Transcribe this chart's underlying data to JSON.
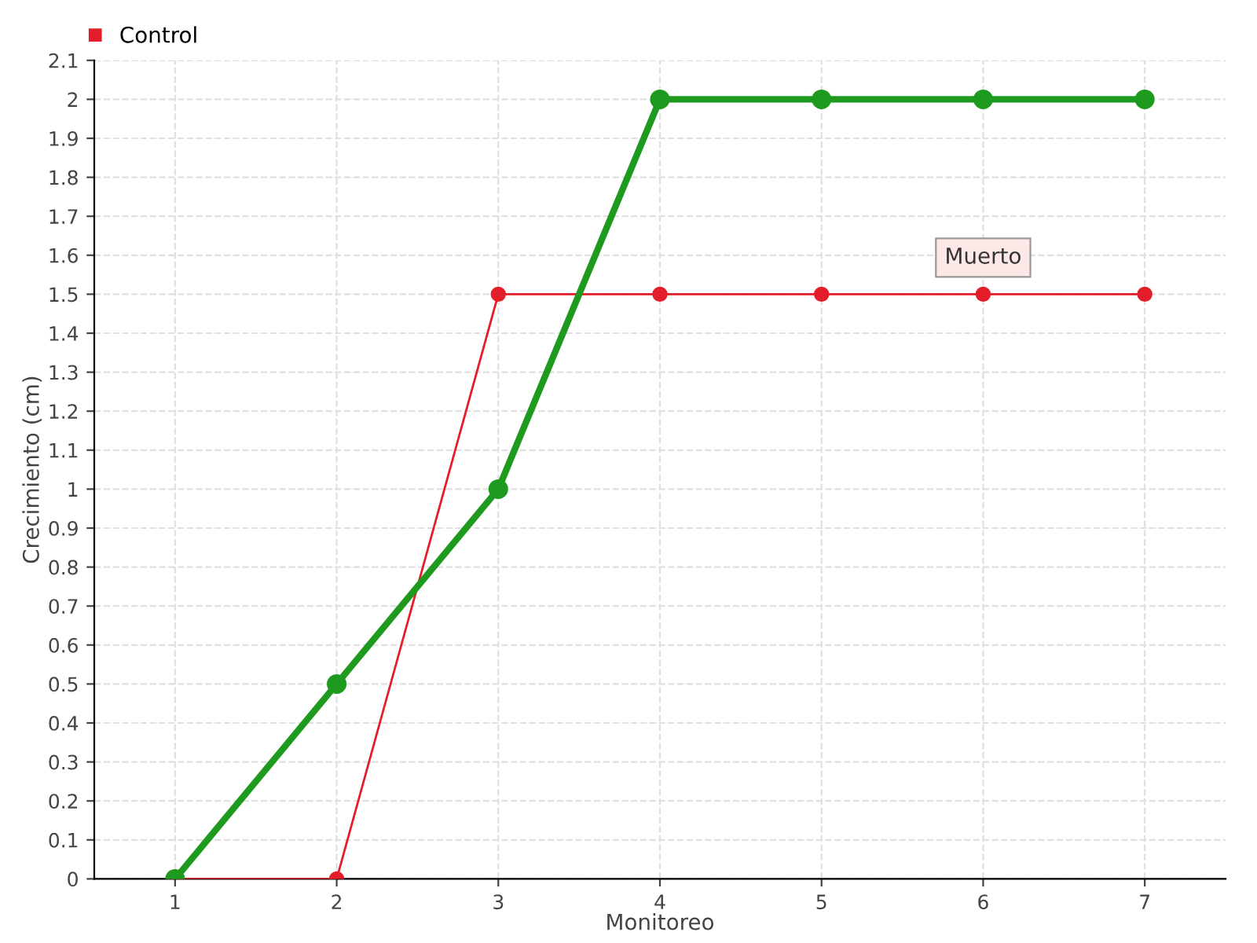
{
  "chart_data": {
    "type": "line",
    "xlabel": "Monitoreo",
    "ylabel": "Crecimiento (cm)",
    "x": [
      1,
      2,
      3,
      4,
      5,
      6,
      7
    ],
    "series": [
      {
        "color": "#1e9a1e",
        "values": [
          0,
          0.5,
          1,
          2,
          2,
          2,
          2
        ]
      },
      {
        "name": "Control",
        "color": "#e31e2a",
        "values": [
          0,
          0,
          1.5,
          1.5,
          1.5,
          1.5,
          1.5
        ]
      }
    ],
    "xlim": [
      0.5,
      7.5
    ],
    "xticks": [
      1,
      2,
      3,
      4,
      5,
      6,
      7
    ],
    "ylim": [
      0,
      2.1
    ],
    "yticks": [
      0,
      0.1,
      0.2,
      0.3,
      0.4,
      0.5,
      0.6,
      0.7,
      0.8,
      0.9,
      1,
      1.1,
      1.2,
      1.3,
      1.4,
      1.5,
      1.6,
      1.7,
      1.8,
      1.9,
      2,
      2.1
    ],
    "annotations": [
      {
        "text": "Muerto",
        "x": 6,
        "y": 1.5
      }
    ],
    "grid": true,
    "legend": "top left",
    "marker": "circle",
    "line_style": "solid"
  }
}
